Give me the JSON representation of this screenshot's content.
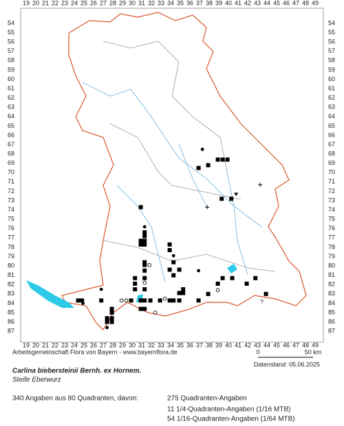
{
  "map": {
    "x_labels": [
      19,
      20,
      21,
      22,
      23,
      24,
      25,
      26,
      27,
      28,
      29,
      30,
      31,
      32,
      33,
      34,
      35,
      36,
      37,
      38,
      39,
      40,
      41,
      42,
      43,
      44,
      45,
      46,
      47,
      48,
      49
    ],
    "y_labels": [
      54,
      55,
      56,
      57,
      58,
      59,
      60,
      61,
      62,
      63,
      64,
      65,
      66,
      67,
      68,
      69,
      70,
      71,
      72,
      73,
      74,
      75,
      76,
      77,
      78,
      79,
      80,
      81,
      82,
      83,
      84,
      85,
      86,
      87
    ],
    "markers": [
      {
        "x": 37.3,
        "y": 67.5,
        "symbol": "dot"
      },
      {
        "x": 38.9,
        "y": 68.6,
        "symbol": "square"
      },
      {
        "x": 39.4,
        "y": 68.6,
        "symbol": "square"
      },
      {
        "x": 39.9,
        "y": 68.6,
        "symbol": "square"
      },
      {
        "x": 36.9,
        "y": 69.5,
        "symbol": "square"
      },
      {
        "x": 37.9,
        "y": 69.2,
        "symbol": "square"
      },
      {
        "x": 43.3,
        "y": 71.3,
        "symbol": "plus"
      },
      {
        "x": 40.8,
        "y": 72.3,
        "symbol": "triangle"
      },
      {
        "x": 39.3,
        "y": 72.8,
        "symbol": "square"
      },
      {
        "x": 40.3,
        "y": 72.8,
        "symbol": "square"
      },
      {
        "x": 37.8,
        "y": 73.7,
        "symbol": "plus"
      },
      {
        "x": 30.9,
        "y": 73.7,
        "symbol": "square"
      },
      {
        "x": 31.3,
        "y": 75.8,
        "symbol": "dot"
      },
      {
        "x": 31.3,
        "y": 76.4,
        "symbol": "square"
      },
      {
        "x": 31.3,
        "y": 76.8,
        "symbol": "square"
      },
      {
        "x": 30.9,
        "y": 77.3,
        "symbol": "square"
      },
      {
        "x": 31.3,
        "y": 77.3,
        "symbol": "square"
      },
      {
        "x": 30.9,
        "y": 77.7,
        "symbol": "square"
      },
      {
        "x": 31.3,
        "y": 77.7,
        "symbol": "square"
      },
      {
        "x": 33.9,
        "y": 77.7,
        "symbol": "square"
      },
      {
        "x": 33.9,
        "y": 78.3,
        "symbol": "square"
      },
      {
        "x": 34.3,
        "y": 78.9,
        "symbol": "dot"
      },
      {
        "x": 34.3,
        "y": 79.6,
        "symbol": "square"
      },
      {
        "x": 31.3,
        "y": 79.6,
        "symbol": "square"
      },
      {
        "x": 31.3,
        "y": 79.9,
        "symbol": "square"
      },
      {
        "x": 31.8,
        "y": 79.9,
        "symbol": "circle"
      },
      {
        "x": 33.9,
        "y": 80.4,
        "symbol": "square"
      },
      {
        "x": 34.9,
        "y": 80.4,
        "symbol": "square"
      },
      {
        "x": 31.3,
        "y": 80.5,
        "symbol": "square"
      },
      {
        "x": 36.9,
        "y": 80.5,
        "symbol": "dot"
      },
      {
        "x": 34.3,
        "y": 81.0,
        "symbol": "square"
      },
      {
        "x": 31.3,
        "y": 81.3,
        "symbol": "square"
      },
      {
        "x": 30.3,
        "y": 81.3,
        "symbol": "square"
      },
      {
        "x": 39.4,
        "y": 81.3,
        "symbol": "square"
      },
      {
        "x": 40.4,
        "y": 81.3,
        "symbol": "square"
      },
      {
        "x": 42.8,
        "y": 81.3,
        "symbol": "square"
      },
      {
        "x": 31.3,
        "y": 81.8,
        "symbol": "circle"
      },
      {
        "x": 30.3,
        "y": 81.9,
        "symbol": "square"
      },
      {
        "x": 38.9,
        "y": 81.9,
        "symbol": "square"
      },
      {
        "x": 41.9,
        "y": 81.9,
        "symbol": "square"
      },
      {
        "x": 26.8,
        "y": 82.5,
        "symbol": "dot"
      },
      {
        "x": 30.3,
        "y": 82.5,
        "symbol": "square"
      },
      {
        "x": 31.3,
        "y": 82.5,
        "symbol": "square"
      },
      {
        "x": 35.3,
        "y": 82.5,
        "symbol": "square"
      },
      {
        "x": 34.9,
        "y": 82.9,
        "symbol": "square"
      },
      {
        "x": 35.3,
        "y": 82.9,
        "symbol": "square"
      },
      {
        "x": 37.9,
        "y": 83.0,
        "symbol": "square"
      },
      {
        "x": 38.9,
        "y": 82.6,
        "symbol": "circle"
      },
      {
        "x": 43.9,
        "y": 83.0,
        "symbol": "square"
      },
      {
        "x": 24.4,
        "y": 83.7,
        "symbol": "square"
      },
      {
        "x": 24.8,
        "y": 83.7,
        "symbol": "square"
      },
      {
        "x": 26.8,
        "y": 83.7,
        "symbol": "square"
      },
      {
        "x": 29.9,
        "y": 83.7,
        "symbol": "square"
      },
      {
        "x": 30.9,
        "y": 83.7,
        "symbol": "square"
      },
      {
        "x": 31.3,
        "y": 83.7,
        "symbol": "square"
      },
      {
        "x": 32.9,
        "y": 83.7,
        "symbol": "square"
      },
      {
        "x": 33.9,
        "y": 83.7,
        "symbol": "square"
      },
      {
        "x": 34.3,
        "y": 83.7,
        "symbol": "square"
      },
      {
        "x": 34.9,
        "y": 83.7,
        "symbol": "square"
      },
      {
        "x": 36.9,
        "y": 83.7,
        "symbol": "square"
      },
      {
        "x": 31.9,
        "y": 83.7,
        "symbol": "square"
      },
      {
        "x": 28.9,
        "y": 83.7,
        "symbol": "circle"
      },
      {
        "x": 29.4,
        "y": 83.7,
        "symbol": "circle"
      },
      {
        "x": 24.9,
        "y": 84.0,
        "symbol": "dot"
      },
      {
        "x": 33.4,
        "y": 83.5,
        "symbol": "circle"
      },
      {
        "x": 27.9,
        "y": 84.6,
        "symbol": "square"
      },
      {
        "x": 30.9,
        "y": 84.6,
        "symbol": "square"
      },
      {
        "x": 31.3,
        "y": 84.6,
        "symbol": "square"
      },
      {
        "x": 32.4,
        "y": 85.0,
        "symbol": "circle"
      },
      {
        "x": 27.9,
        "y": 85.0,
        "symbol": "square"
      },
      {
        "x": 27.4,
        "y": 85.6,
        "symbol": "square"
      },
      {
        "x": 27.9,
        "y": 85.6,
        "symbol": "square"
      },
      {
        "x": 27.4,
        "y": 86.0,
        "symbol": "square"
      },
      {
        "x": 27.9,
        "y": 86.0,
        "symbol": "square"
      },
      {
        "x": 27.4,
        "y": 86.6,
        "symbol": "dot"
      }
    ],
    "unknown_mark": "?",
    "credit": "Arbeitsgemeinschaft Flora von Bayern - www.bayernflora.de",
    "scale_start": "0",
    "scale_end": "50 km",
    "date": "Datenstand: 05.06.2025",
    "species": "Carlina biebersteinii Bernh. ex Hornem.",
    "common_name": "Steife Eberwurz",
    "summary": "340 Angaben aus 80 Quadranten, davon:",
    "stats": [
      "275 Quadranten-Angaben",
      "11 1/4-Quadranten-Angaben (1/16 MTB)",
      "54 1/16-Quadranten-Angaben (1/64 MTB)"
    ]
  }
}
